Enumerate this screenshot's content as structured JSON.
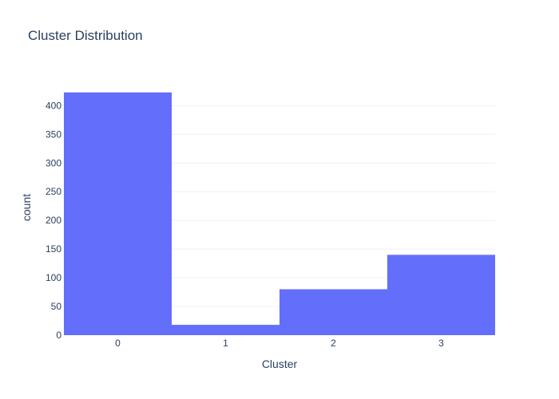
{
  "chart_data": {
    "type": "bar",
    "title": "Cluster Distribution",
    "xlabel": "Cluster",
    "ylabel": "count",
    "categories": [
      "0",
      "1",
      "2",
      "3"
    ],
    "values": [
      423,
      18,
      80,
      140
    ],
    "ylim": [
      0,
      445
    ],
    "yticks": [
      0,
      50,
      100,
      150,
      200,
      250,
      300,
      350,
      400
    ],
    "grid": true,
    "legend": "none",
    "colors": {
      "bar": "#636efa",
      "text": "#2a3f5f",
      "grid": "#ebf0f8",
      "background": "#ffffff"
    }
  }
}
